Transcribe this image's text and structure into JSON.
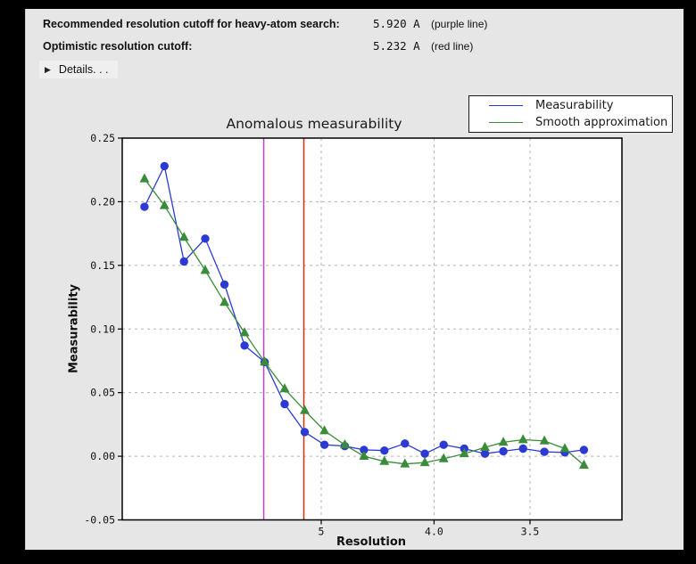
{
  "header": {
    "rows": [
      {
        "label": "Recommended resolution cutoff for heavy-atom search:",
        "value": "5.920 A",
        "note": "(purple line)"
      },
      {
        "label": "Optimistic resolution cutoff:",
        "value": "5.232 A",
        "note": "(red line)"
      }
    ],
    "details_label": "Details. . .",
    "details_icon": "disclosure-triangle-right"
  },
  "colors": {
    "window_background": "#e6e6e6",
    "plot_background": "#ffffff",
    "gridline": "#b3b3b3",
    "measurability_line": "#2c3ad4",
    "smooth_line": "#3a8c3a",
    "purple_cutoff_line": "#c243c2",
    "red_cutoff_line": "#cc3311"
  },
  "chart_data": {
    "type": "line",
    "title": "Anomalous measurability",
    "xlabel": "Resolution",
    "ylabel": "Measurability",
    "x_axis_scale": "inverse_d_squared",
    "x_resolution_angstrom": [
      14.5,
      10.7,
      8.9,
      7.7,
      6.95,
      6.36,
      5.9,
      5.53,
      5.22,
      4.96,
      4.73,
      4.54,
      4.36,
      4.2,
      4.06,
      3.94,
      3.82,
      3.71,
      3.62,
      3.53,
      3.44,
      3.36,
      3.29
    ],
    "series": [
      {
        "name": "Measurability",
        "color": "#2c3ad4",
        "marker": "circle",
        "values": [
          0.196,
          0.228,
          0.153,
          0.171,
          0.135,
          0.087,
          0.074,
          0.041,
          0.019,
          0.009,
          0.008,
          0.005,
          0.0045,
          0.01,
          0.002,
          0.009,
          0.006,
          0.002,
          0.004,
          0.006,
          0.0035,
          0.003,
          0.005
        ]
      },
      {
        "name": "Smooth approximation",
        "color": "#3a8c3a",
        "marker": "triangle",
        "values": [
          0.218,
          0.197,
          0.172,
          0.146,
          0.121,
          0.097,
          0.074,
          0.053,
          0.036,
          0.02,
          0.009,
          0.0,
          -0.004,
          -0.006,
          -0.005,
          -0.002,
          0.002,
          0.007,
          0.011,
          0.013,
          0.012,
          0.006,
          -0.007
        ]
      }
    ],
    "x_ticks": [
      {
        "label": "5",
        "d": 5.0
      },
      {
        "label": "4.0",
        "d": 4.0
      },
      {
        "label": "3.5",
        "d": 3.5
      }
    ],
    "y_ticks": [
      {
        "label": "0.25",
        "v": 0.25
      },
      {
        "label": "0.20",
        "v": 0.2
      },
      {
        "label": "0.15",
        "v": 0.15
      },
      {
        "label": "0.10",
        "v": 0.1
      },
      {
        "label": "0.05",
        "v": 0.05
      },
      {
        "label": "0.00",
        "v": 0.0
      },
      {
        "label": "-0.05",
        "v": -0.05
      }
    ],
    "ylim": [
      -0.05,
      0.25
    ],
    "grid": true,
    "legend_position": "upper-right",
    "vlines": [
      {
        "resolution": 5.92,
        "color": "#c243c2",
        "name": "purple line"
      },
      {
        "resolution": 5.232,
        "color": "#cc3311",
        "name": "red line"
      }
    ]
  }
}
